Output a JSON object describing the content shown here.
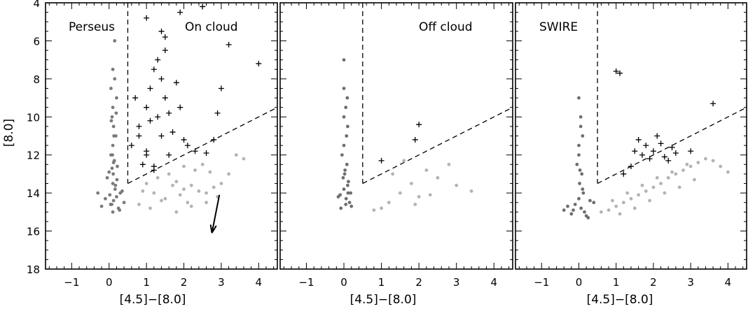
{
  "figure": {
    "ylabel": "[8.0]"
  },
  "chart_data": [
    {
      "type": "scatter",
      "label": "Perseus",
      "sublabel": "On cloud",
      "xlabel": "[4.5]−[8.0]",
      "ylabel": "[8.0]",
      "xlim": [
        -1.7,
        4.5
      ],
      "ylim": [
        18,
        4
      ],
      "x_ticks": [
        -1,
        0,
        1,
        2,
        3,
        4
      ],
      "y_ticks": [
        4,
        6,
        8,
        10,
        12,
        14,
        16,
        18
      ],
      "divider": {
        "vertical_x": 0.5,
        "vertical_from_y": 4.0,
        "vertical_to_y": 13.5,
        "diagonal_from": [
          0.5,
          13.5
        ],
        "diagonal_to": [
          4.5,
          9.5
        ]
      },
      "reddening_vector": {
        "from": [
          2.95,
          14.1
        ],
        "to": [
          2.75,
          16.1
        ]
      },
      "series": [
        {
          "marker": "dot",
          "color": "#7a7a7a",
          "x": [
            0.1,
            0.15,
            0.05,
            0.2,
            0.1,
            0.08,
            0.12,
            0.18,
            0.1,
            0.05,
            0.14,
            0.22,
            0.0,
            -0.05,
            0.1,
            0.16,
            0.3,
            0.2,
            0.12,
            0.07,
            0.25,
            0.11,
            0.09,
            0.13,
            0.06,
            0.19,
            -0.1,
            0.4,
            -0.2,
            0.1,
            0.35,
            0.02,
            0.17,
            0.21,
            0.08,
            0.12,
            0.28,
            0.04,
            -0.3,
            0.15
          ],
          "y": [
            7.5,
            8.0,
            8.5,
            9.0,
            9.5,
            10.0,
            10.5,
            11.0,
            11.5,
            12.0,
            12.3,
            12.6,
            12.9,
            13.2,
            13.5,
            13.8,
            14.0,
            14.2,
            14.4,
            14.6,
            14.8,
            13.0,
            12.0,
            11.0,
            10.2,
            9.8,
            14.3,
            14.5,
            14.7,
            15.0,
            13.9,
            14.1,
            13.6,
            13.3,
            12.7,
            12.4,
            14.9,
            14.6,
            14.0,
            6.0
          ]
        },
        {
          "marker": "dot",
          "color": "#b3b3b3",
          "x": [
            1.0,
            1.3,
            1.6,
            1.8,
            2.0,
            2.2,
            2.4,
            2.6,
            2.8,
            3.0,
            1.5,
            1.9,
            2.1,
            2.3,
            2.5,
            1.2,
            1.7,
            2.7,
            2.9,
            3.2,
            0.8,
            1.1,
            1.4,
            2.0,
            2.2,
            2.6,
            3.4,
            3.6,
            0.9,
            1.8
          ],
          "y": [
            13.5,
            13.2,
            13.0,
            13.4,
            13.8,
            13.6,
            13.9,
            14.0,
            13.7,
            13.5,
            14.3,
            14.1,
            14.5,
            12.8,
            12.5,
            14.0,
            13.6,
            12.9,
            14.2,
            13.0,
            14.6,
            14.8,
            14.4,
            12.6,
            14.7,
            14.5,
            12.0,
            12.2,
            13.9,
            15.0
          ]
        },
        {
          "marker": "plus",
          "color": "#000000",
          "x": [
            0.6,
            0.8,
            1.0,
            1.1,
            1.2,
            1.3,
            1.4,
            1.5,
            1.6,
            0.9,
            1.0,
            1.2,
            1.4,
            1.7,
            1.9,
            2.1,
            0.7,
            1.3,
            1.5,
            1.1,
            0.8,
            1.6,
            1.8,
            2.0,
            1.0,
            1.2,
            2.3,
            2.6,
            3.0,
            3.2,
            2.8,
            1.4,
            1.9,
            2.5,
            4.0,
            2.9,
            1.0,
            1.5
          ],
          "y": [
            11.5,
            10.5,
            9.5,
            8.5,
            7.5,
            10.0,
            11.0,
            9.0,
            12.0,
            12.5,
            11.8,
            12.8,
            8.0,
            10.8,
            9.5,
            11.5,
            9.0,
            7.0,
            6.5,
            10.2,
            11.0,
            9.8,
            8.2,
            11.2,
            12.0,
            12.6,
            11.8,
            11.9,
            8.5,
            6.2,
            11.2,
            5.5,
            4.5,
            4.2,
            7.2,
            9.8,
            4.8,
            5.8
          ]
        }
      ]
    },
    {
      "type": "scatter",
      "label": "Off cloud",
      "xlabel": "[4.5]−[8.0]",
      "xlim": [
        -1.7,
        4.5
      ],
      "ylim": [
        18,
        4
      ],
      "x_ticks": [
        -1,
        0,
        1,
        2,
        3,
        4
      ],
      "y_ticks": [
        4,
        6,
        8,
        10,
        12,
        14,
        16,
        18
      ],
      "divider": {
        "vertical_x": 0.5,
        "vertical_from_y": 4.0,
        "vertical_to_y": 13.5,
        "diagonal_from": [
          0.5,
          13.5
        ],
        "diagonal_to": [
          4.5,
          9.5
        ]
      },
      "series": [
        {
          "marker": "dot",
          "color": "#6e6e6e",
          "x": [
            0.0,
            0.05,
            0.1,
            0.0,
            -0.05,
            0.08,
            0.02,
            0.12,
            0.0,
            -0.1,
            0.06,
            0.15,
            0.2,
            -0.15,
            0.1,
            0.03,
            0.0,
            0.07,
            -0.02,
            0.11,
            0.05,
            -0.08,
            0.18,
            0.0,
            0.09
          ],
          "y": [
            8.5,
            9.5,
            10.5,
            11.5,
            12.0,
            12.5,
            13.0,
            13.4,
            13.8,
            14.1,
            14.3,
            14.5,
            14.7,
            14.2,
            13.6,
            12.8,
            10.0,
            11.0,
            13.2,
            14.0,
            14.6,
            14.8,
            14.0,
            7.0,
            9.0
          ]
        },
        {
          "marker": "dot",
          "color": "#b3b3b3",
          "x": [
            1.2,
            1.5,
            1.8,
            2.0,
            2.2,
            2.5,
            1.0,
            1.3,
            2.8,
            3.0,
            1.6,
            2.3,
            0.8,
            3.4,
            1.9
          ],
          "y": [
            14.5,
            14.0,
            13.5,
            14.2,
            12.8,
            13.2,
            14.8,
            13.0,
            12.5,
            13.6,
            12.3,
            14.1,
            14.9,
            13.9,
            14.6
          ]
        },
        {
          "marker": "plus",
          "color": "#000000",
          "x": [
            1.0,
            1.9,
            2.0
          ],
          "y": [
            12.3,
            11.2,
            10.4
          ]
        }
      ]
    },
    {
      "type": "scatter",
      "label": "SWIRE",
      "xlabel": "[4.5]−[8.0]",
      "xlim": [
        -1.7,
        4.5
      ],
      "ylim": [
        18,
        4
      ],
      "x_ticks": [
        -1,
        0,
        1,
        2,
        3,
        4
      ],
      "y_ticks": [
        4,
        6,
        8,
        10,
        12,
        14,
        16,
        18
      ],
      "divider": {
        "vertical_x": 0.5,
        "vertical_from_y": 4.0,
        "vertical_to_y": 13.5,
        "diagonal_from": [
          0.5,
          13.5
        ],
        "diagonal_to": [
          4.5,
          9.5
        ]
      },
      "series": [
        {
          "marker": "dot",
          "color": "#6e6e6e",
          "x": [
            0.0,
            0.05,
            0.1,
            0.0,
            -0.05,
            0.08,
            0.02,
            0.12,
            0.0,
            -0.1,
            0.06,
            0.15,
            0.2,
            -0.15,
            0.1,
            0.03,
            -0.3,
            0.3,
            -0.2,
            0.25,
            0.0,
            0.05,
            -0.4,
            0.4
          ],
          "y": [
            9.0,
            10.0,
            11.0,
            12.0,
            12.5,
            13.0,
            13.5,
            14.0,
            14.3,
            14.6,
            14.8,
            15.0,
            15.2,
            14.9,
            13.8,
            12.8,
            14.7,
            14.4,
            15.1,
            15.3,
            11.5,
            10.5,
            14.9,
            14.5
          ]
        },
        {
          "marker": "dot",
          "color": "#b3b3b3",
          "x": [
            0.6,
            0.8,
            1.0,
            1.2,
            1.4,
            1.6,
            1.8,
            2.0,
            2.2,
            2.4,
            2.6,
            2.8,
            3.0,
            3.2,
            3.4,
            0.9,
            1.3,
            1.7,
            2.1,
            2.5,
            2.9,
            3.6,
            1.1,
            1.5,
            1.9,
            2.3,
            2.7,
            3.1,
            3.8,
            4.0
          ],
          "y": [
            15.0,
            14.9,
            14.7,
            14.5,
            14.3,
            14.1,
            13.9,
            13.7,
            13.5,
            13.2,
            13.0,
            12.8,
            12.6,
            12.4,
            12.2,
            14.4,
            14.0,
            13.6,
            13.2,
            12.9,
            12.5,
            12.3,
            15.1,
            14.8,
            14.4,
            14.0,
            13.7,
            13.3,
            12.6,
            12.9
          ]
        },
        {
          "marker": "plus",
          "color": "#000000",
          "x": [
            1.6,
            1.8,
            2.0,
            2.2,
            1.7,
            1.9,
            2.1,
            2.3,
            2.5,
            2.6,
            1.5,
            1.4,
            1.2,
            3.0,
            3.6,
            1.0,
            1.1,
            2.4
          ],
          "y": [
            11.2,
            11.5,
            11.8,
            11.4,
            12.0,
            12.2,
            11.0,
            12.1,
            11.6,
            11.9,
            11.8,
            12.6,
            13.0,
            11.8,
            9.3,
            7.6,
            7.7,
            12.3
          ]
        }
      ]
    }
  ]
}
